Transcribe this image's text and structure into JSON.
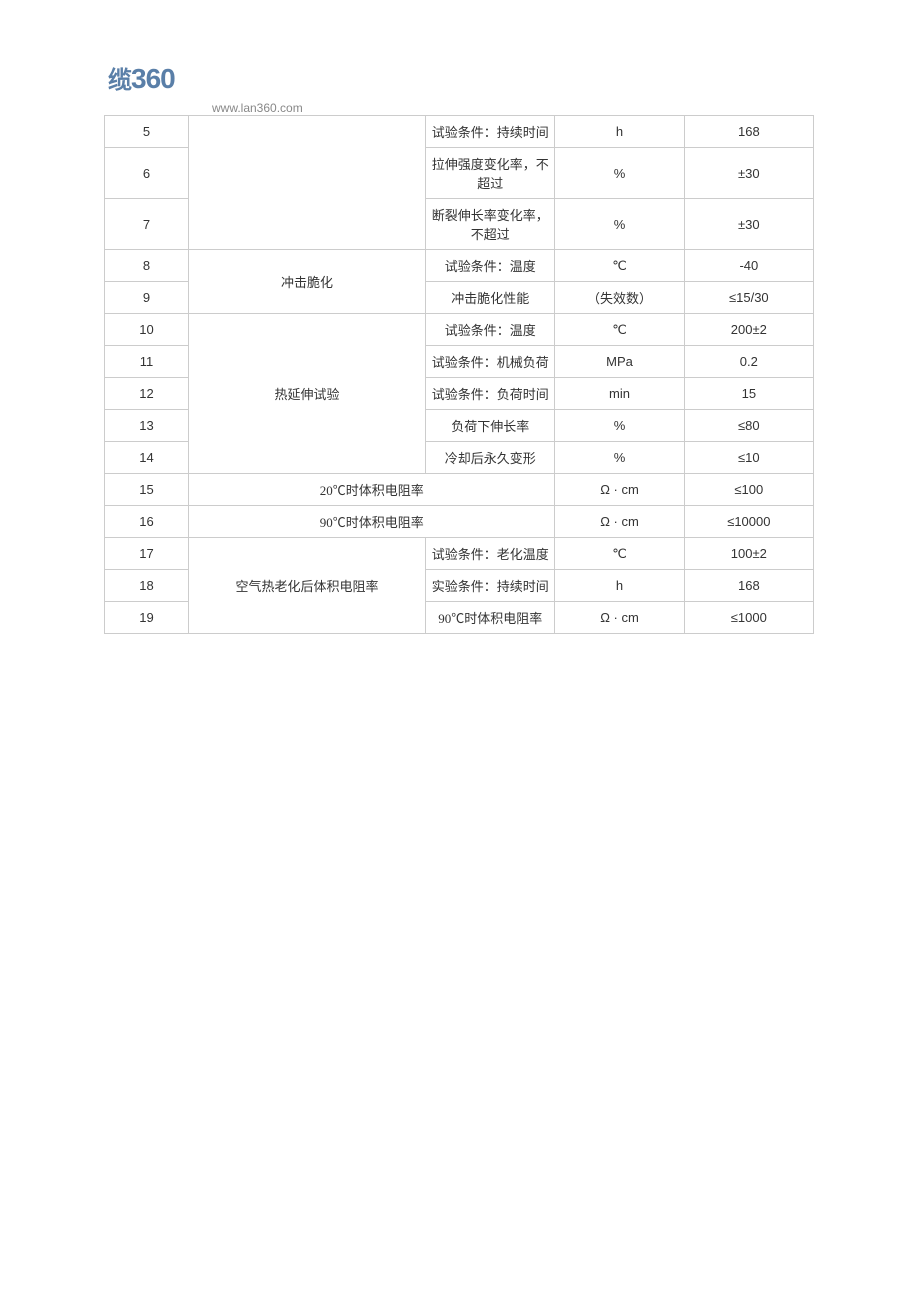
{
  "header": {
    "logo_cn": "缆",
    "logo_num": "360",
    "url": "www.lan360.com"
  },
  "table": {
    "columns": {
      "idx_width": 78,
      "group_width": 220,
      "item_width": 120,
      "unit_width": 120,
      "val_width": 120
    },
    "border_color": "#cccccc",
    "text_color": "#333333",
    "font_size": 13,
    "rows": [
      {
        "idx": "5",
        "group": "",
        "item": "试验条件：持续时间",
        "unit": "h",
        "value": "168"
      },
      {
        "idx": "6",
        "group": "",
        "item": "拉伸强度变化率，不超过",
        "unit": "%",
        "value": "±30"
      },
      {
        "idx": "7",
        "group": "",
        "item": "断裂伸长率变化率，不超过",
        "unit": "%",
        "value": "±30"
      },
      {
        "idx": "8",
        "group": "冲击脆化",
        "item": "试验条件：温度",
        "unit": "℃",
        "value": "-40"
      },
      {
        "idx": "9",
        "group": "",
        "item": "冲击脆化性能",
        "unit": "（失效数）",
        "value": "≤15/30"
      },
      {
        "idx": "10",
        "group": "热延伸试验",
        "item": "试验条件：温度",
        "unit": "℃",
        "value": "200±2"
      },
      {
        "idx": "11",
        "group": "",
        "item": "试验条件：机械负荷",
        "unit": "MPa",
        "value": "0.2"
      },
      {
        "idx": "12",
        "group": "",
        "item": "试验条件：负荷时间",
        "unit": "min",
        "value": "15"
      },
      {
        "idx": "13",
        "group": "",
        "item": "负荷下伸长率",
        "unit": "%",
        "value": "≤80"
      },
      {
        "idx": "14",
        "group": "",
        "item": "冷却后永久变形",
        "unit": "%",
        "value": "≤10"
      },
      {
        "idx": "15",
        "group_colspan": true,
        "item": "20℃时体积电阻率",
        "unit": "Ω · cm",
        "value": "≤100"
      },
      {
        "idx": "16",
        "group_colspan": true,
        "item": "90℃时体积电阻率",
        "unit": "Ω · cm",
        "value": "≤10000"
      },
      {
        "idx": "17",
        "group": "空气热老化后体积电阻率",
        "item": "试验条件：老化温度",
        "unit": "℃",
        "value": "100±2"
      },
      {
        "idx": "18",
        "group": "",
        "item": "实验条件：持续时间",
        "unit": "h",
        "value": "168"
      },
      {
        "idx": "19",
        "group": "",
        "item": "90℃时体积电阻率",
        "unit": "Ω · cm",
        "value": "≤1000"
      }
    ],
    "groups": [
      {
        "start_idx": "5",
        "span": 3,
        "label": ""
      },
      {
        "start_idx": "8",
        "span": 2,
        "label": "冲击脆化"
      },
      {
        "start_idx": "10",
        "span": 5,
        "label": "热延伸试验"
      },
      {
        "start_idx": "17",
        "span": 3,
        "label": "空气热老化后体积电阻率"
      }
    ]
  }
}
